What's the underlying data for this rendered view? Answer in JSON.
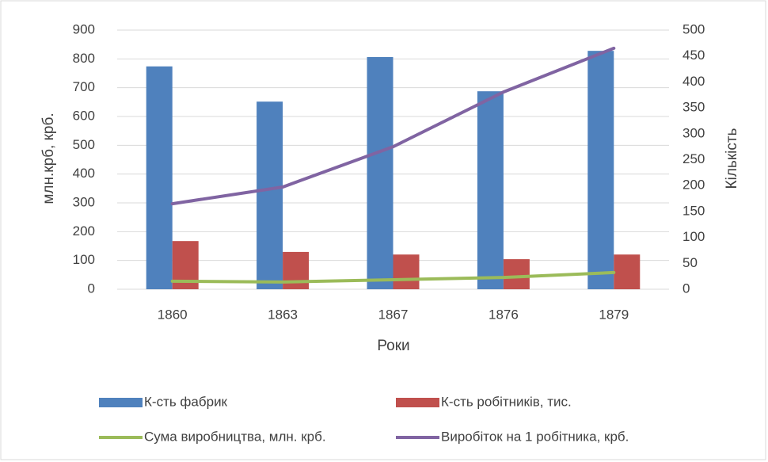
{
  "chart_data": {
    "type": "bar_line",
    "categories": [
      "1860",
      "1863",
      "1867",
      "1876",
      "1879"
    ],
    "x_axis_label": "Роки",
    "y_axis_label": "млн.крб, крб.",
    "y2_axis_label": "Кількість",
    "ylim": [
      0,
      900
    ],
    "yticks": [
      0,
      100,
      200,
      300,
      400,
      500,
      600,
      700,
      800,
      900
    ],
    "y2lim": [
      0,
      500
    ],
    "y2ticks": [
      0,
      50,
      100,
      150,
      200,
      250,
      300,
      350,
      400,
      450,
      500
    ],
    "series": [
      {
        "name": "К-сть фабрик",
        "color": "#4f81bd",
        "kind": "bar",
        "axis": "y2",
        "values": [
          430,
          362,
          448,
          382,
          460
        ]
      },
      {
        "name": "К-сть робітників, тис.",
        "color": "#c0504d",
        "kind": "bar",
        "axis": "y2",
        "values": [
          93,
          72,
          67,
          58,
          67
        ]
      },
      {
        "name": "Сума виробництва, млн. крб.",
        "color": "#9bbb59",
        "kind": "line",
        "values": [
          28,
          25,
          33,
          41,
          58
        ]
      },
      {
        "name": "Виробіток на 1 робітника, крб.",
        "color": "#8064a2",
        "kind": "line",
        "values": [
          297,
          355,
          495,
          685,
          837
        ]
      }
    ]
  }
}
